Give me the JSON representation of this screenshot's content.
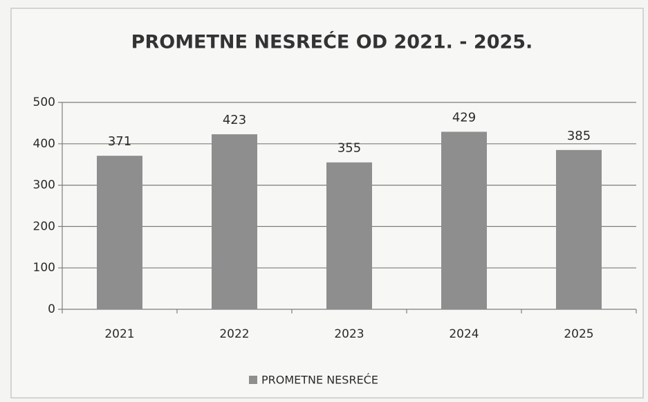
{
  "chart_data": {
    "type": "bar",
    "title": "PROMETNE NESREĆE OD 2021. - 2025.",
    "categories": [
      "2021",
      "2022",
      "2023",
      "2024",
      "2025"
    ],
    "series": [
      {
        "name": "PROMETNE NESREĆE",
        "color": "#8e8e8e",
        "values": [
          371,
          423,
          355,
          429,
          385
        ]
      }
    ],
    "ylim": [
      0,
      500
    ],
    "yticks": [
      0,
      100,
      200,
      300,
      400,
      500
    ],
    "grid": true,
    "legend": "bottom"
  }
}
